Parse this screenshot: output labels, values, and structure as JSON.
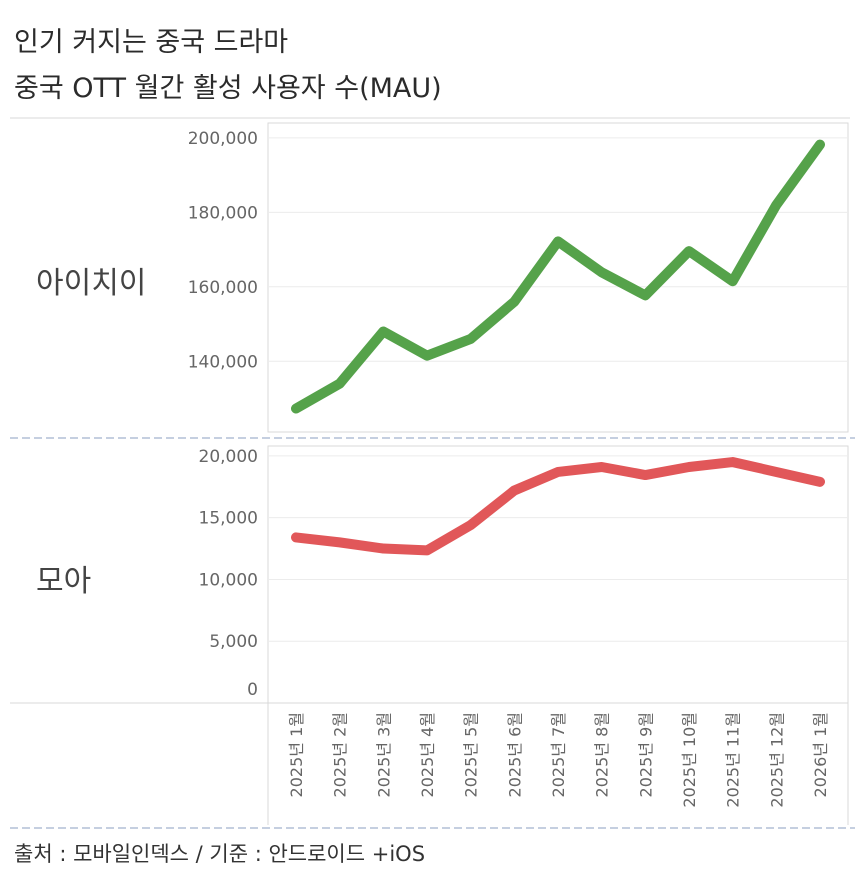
{
  "header": {
    "title_line1": "인기 커지는 중국 드라마",
    "title_line2": "중국 OTT 월간 활성 사용자 수(MAU)"
  },
  "footer": {
    "source": "출처 : 모바일인덱스 / 기준 : 안드로이드 +iOS"
  },
  "colors": {
    "iqiyi": "#55a24a",
    "moa": "#e15759",
    "grid": "#ececec",
    "border": "#d9d9d9",
    "separator": "#c5cfe0"
  },
  "chart_data": [
    {
      "type": "line",
      "title": "아이치이",
      "categories": [
        "2025년 1월",
        "2025년 2월",
        "2025년 3월",
        "2025년 4월",
        "2025년 5월",
        "2025년 6월",
        "2025년 7월",
        "2025년 8월",
        "2025년 9월",
        "2025년 10월",
        "2025년 11월",
        "2025년 12월",
        "2026년 1월"
      ],
      "values": [
        127300,
        134000,
        148000,
        141500,
        146000,
        156000,
        172200,
        163900,
        157700,
        169600,
        161500,
        182000,
        198200
      ],
      "yticks": [
        140000,
        160000,
        180000,
        200000
      ],
      "ytick_labels": [
        "140,000",
        "160,000",
        "180,000",
        "200,000"
      ],
      "ylim": [
        121000,
        204000
      ],
      "grid": true
    },
    {
      "type": "line",
      "title": "모아",
      "categories": [
        "2025년 1월",
        "2025년 2월",
        "2025년 3월",
        "2025년 4월",
        "2025년 5월",
        "2025년 6월",
        "2025년 7월",
        "2025년 8월",
        "2025년 9월",
        "2025년 10월",
        "2025년 11월",
        "2025년 12월",
        "2026년 1월"
      ],
      "values": [
        13400,
        13000,
        12500,
        12350,
        14400,
        17200,
        18700,
        19100,
        18450,
        19100,
        19500,
        18700,
        17900
      ],
      "yticks": [
        0,
        5000,
        10000,
        15000,
        20000
      ],
      "ytick_labels": [
        "0",
        "5,000",
        "10,000",
        "15,000",
        "20,000"
      ],
      "ylim": [
        0,
        20800
      ],
      "grid": true
    }
  ]
}
